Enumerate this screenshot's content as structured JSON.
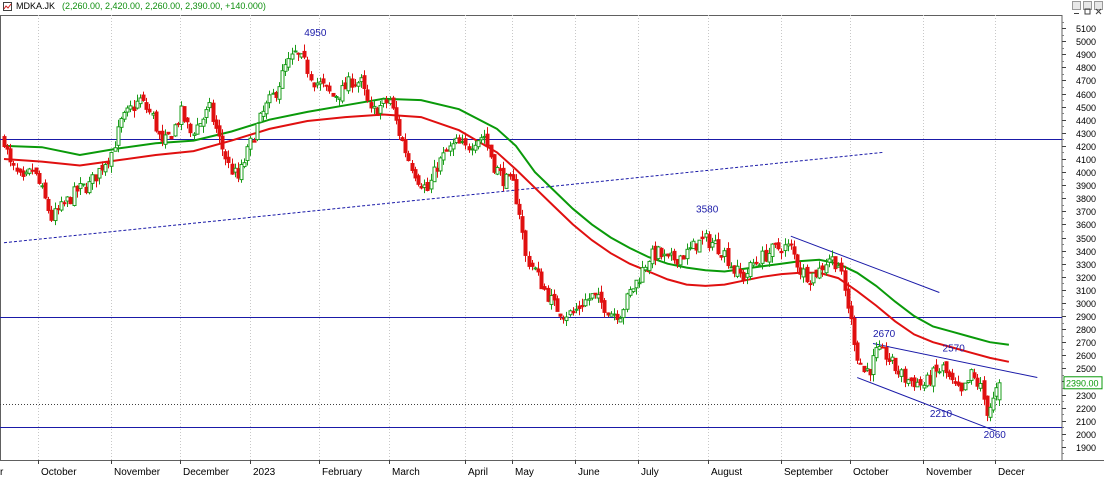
{
  "window": {
    "symbol": "MDKA.JK",
    "ohlc": "(2,260.00, 2,420.00, 2,260.00, 2,390.00, +140.000)"
  },
  "colors": {
    "up": "#1a9c1a",
    "down": "#e01010",
    "ma_green": "#0a9a0a",
    "ma_red": "#e01010",
    "lines": "#1a1aa8",
    "labels": "#1a1aa8",
    "price_tag": "#0a9a0a"
  },
  "chart_data": {
    "type": "candlestick",
    "ylim": [
      1800,
      5200
    ],
    "yticks": [
      1900,
      2000,
      2100,
      2200,
      2300,
      2400,
      2500,
      2600,
      2700,
      2800,
      2900,
      3000,
      3100,
      3200,
      3300,
      3400,
      3500,
      3600,
      3700,
      3800,
      3900,
      4000,
      4100,
      4200,
      4300,
      4400,
      4500,
      4600,
      4700,
      4800,
      4900,
      5000,
      5100
    ],
    "month_labels": [
      {
        "label": "r",
        "pos": 0.5
      },
      {
        "label": "October",
        "pos": 12
      },
      {
        "label": "November",
        "pos": 35
      },
      {
        "label": "December",
        "pos": 57
      },
      {
        "label": "2023",
        "pos": 79
      },
      {
        "label": "February",
        "pos": 101
      },
      {
        "label": "March",
        "pos": 123
      },
      {
        "label": "April",
        "pos": 147
      },
      {
        "label": "May",
        "pos": 162
      },
      {
        "label": "June",
        "pos": 182
      },
      {
        "label": "July",
        "pos": 202
      },
      {
        "label": "August",
        "pos": 224
      },
      {
        "label": "September",
        "pos": 247
      },
      {
        "label": "October",
        "pos": 269
      },
      {
        "label": "November",
        "pos": 292
      },
      {
        "label": "Decer",
        "pos": 315
      }
    ],
    "last_price_label": "2390.00",
    "last_price": 2390,
    "horizontal_lines": [
      {
        "value": 4250,
        "style": "solid"
      },
      {
        "value": 2890,
        "style": "solid"
      },
      {
        "value": 2230,
        "style": "dotted"
      },
      {
        "value": 2050,
        "style": "solid"
      }
    ],
    "trend_lines": [
      {
        "from": [
          0,
          3460
        ],
        "to": [
          278,
          4150
        ],
        "style": "dashed"
      },
      {
        "from": [
          249,
          3510
        ],
        "to": [
          296,
          3080
        ],
        "style": "solid"
      },
      {
        "from": [
          275,
          2690
        ],
        "to": [
          327,
          2430
        ],
        "style": "solid"
      },
      {
        "from": [
          270,
          2430
        ],
        "to": [
          314,
          2020
        ],
        "style": "solid"
      }
    ],
    "annotations": [
      {
        "text": "4950",
        "x": 95,
        "y": 5040
      },
      {
        "text": "3580",
        "x": 219,
        "y": 3690
      },
      {
        "text": "2670",
        "x": 275,
        "y": 2740
      },
      {
        "text": "2570",
        "x": 297,
        "y": 2630
      },
      {
        "text": "2210",
        "x": 293,
        "y": 2130
      },
      {
        "text": "2060",
        "x": 310,
        "y": 1970
      }
    ],
    "price_anchors": [
      [
        0,
        4250
      ],
      [
        2,
        4050
      ],
      [
        6,
        3920
      ],
      [
        9,
        4020
      ],
      [
        12,
        3850
      ],
      [
        15,
        3650
      ],
      [
        19,
        3750
      ],
      [
        23,
        3860
      ],
      [
        27,
        3900
      ],
      [
        31,
        4050
      ],
      [
        34,
        4150
      ],
      [
        37,
        4380
      ],
      [
        40,
        4480
      ],
      [
        43,
        4550
      ],
      [
        47,
        4420
      ],
      [
        50,
        4200
      ],
      [
        53,
        4300
      ],
      [
        56,
        4450
      ],
      [
        59,
        4300
      ],
      [
        62,
        4380
      ],
      [
        65,
        4480
      ],
      [
        68,
        4250
      ],
      [
        71,
        4050
      ],
      [
        74,
        3950
      ],
      [
        77,
        4150
      ],
      [
        80,
        4350
      ],
      [
        83,
        4500
      ],
      [
        86,
        4620
      ],
      [
        89,
        4800
      ],
      [
        92,
        4900
      ],
      [
        95,
        4830
      ],
      [
        98,
        4700
      ],
      [
        101,
        4650
      ],
      [
        104,
        4580
      ],
      [
        107,
        4620
      ],
      [
        110,
        4700
      ],
      [
        113,
        4680
      ],
      [
        116,
        4450
      ],
      [
        119,
        4500
      ],
      [
        122,
        4550
      ],
      [
        125,
        4300
      ],
      [
        128,
        4100
      ],
      [
        131,
        3950
      ],
      [
        134,
        3860
      ],
      [
        137,
        4050
      ],
      [
        140,
        4150
      ],
      [
        143,
        4220
      ],
      [
        146,
        4180
      ],
      [
        149,
        4250
      ],
      [
        152,
        4280
      ],
      [
        155,
        4050
      ],
      [
        158,
        3950
      ],
      [
        161,
        3900
      ],
      [
        163,
        3700
      ],
      [
        165,
        3350
      ],
      [
        168,
        3250
      ],
      [
        171,
        3100
      ],
      [
        174,
        2980
      ],
      [
        177,
        2920
      ],
      [
        180,
        2920
      ],
      [
        183,
        3000
      ],
      [
        186,
        3050
      ],
      [
        189,
        3000
      ],
      [
        192,
        2930
      ],
      [
        195,
        2920
      ],
      [
        198,
        3080
      ],
      [
        201,
        3200
      ],
      [
        204,
        3350
      ],
      [
        207,
        3380
      ],
      [
        210,
        3320
      ],
      [
        213,
        3350
      ],
      [
        216,
        3380
      ],
      [
        219,
        3450
      ],
      [
        222,
        3480
      ],
      [
        225,
        3450
      ],
      [
        228,
        3380
      ],
      [
        231,
        3250
      ],
      [
        234,
        3200
      ],
      [
        237,
        3300
      ],
      [
        240,
        3350
      ],
      [
        243,
        3400
      ],
      [
        246,
        3430
      ],
      [
        249,
        3420
      ],
      [
        252,
        3250
      ],
      [
        255,
        3200
      ],
      [
        258,
        3250
      ],
      [
        261,
        3350
      ],
      [
        264,
        3300
      ],
      [
        267,
        2980
      ],
      [
        270,
        2600
      ],
      [
        272,
        2480
      ],
      [
        274,
        2500
      ],
      [
        276,
        2620
      ],
      [
        279,
        2600
      ],
      [
        282,
        2500
      ],
      [
        285,
        2420
      ],
      [
        288,
        2400
      ],
      [
        291,
        2370
      ],
      [
        294,
        2450
      ],
      [
        297,
        2500
      ],
      [
        300,
        2380
      ],
      [
        303,
        2300
      ],
      [
        306,
        2450
      ],
      [
        309,
        2350
      ],
      [
        311,
        2180
      ],
      [
        313,
        2250
      ],
      [
        315,
        2390
      ]
    ],
    "ma_green": [
      [
        0,
        4200
      ],
      [
        12,
        4190
      ],
      [
        24,
        4130
      ],
      [
        36,
        4180
      ],
      [
        48,
        4220
      ],
      [
        60,
        4240
      ],
      [
        72,
        4310
      ],
      [
        84,
        4400
      ],
      [
        96,
        4460
      ],
      [
        108,
        4510
      ],
      [
        120,
        4560
      ],
      [
        132,
        4550
      ],
      [
        144,
        4480
      ],
      [
        156,
        4330
      ],
      [
        162,
        4200
      ],
      [
        168,
        4000
      ],
      [
        174,
        3860
      ],
      [
        180,
        3720
      ],
      [
        186,
        3600
      ],
      [
        192,
        3500
      ],
      [
        198,
        3420
      ],
      [
        204,
        3350
      ],
      [
        210,
        3300
      ],
      [
        216,
        3270
      ],
      [
        222,
        3250
      ],
      [
        228,
        3240
      ],
      [
        234,
        3260
      ],
      [
        240,
        3280
      ],
      [
        246,
        3300
      ],
      [
        252,
        3320
      ],
      [
        258,
        3330
      ],
      [
        264,
        3300
      ],
      [
        270,
        3230
      ],
      [
        276,
        3130
      ],
      [
        282,
        3010
      ],
      [
        288,
        2900
      ],
      [
        294,
        2820
      ],
      [
        300,
        2780
      ],
      [
        306,
        2740
      ],
      [
        312,
        2700
      ],
      [
        318,
        2680
      ]
    ],
    "ma_red": [
      [
        0,
        4100
      ],
      [
        12,
        4080
      ],
      [
        24,
        4050
      ],
      [
        36,
        4090
      ],
      [
        48,
        4130
      ],
      [
        60,
        4160
      ],
      [
        72,
        4240
      ],
      [
        84,
        4330
      ],
      [
        96,
        4390
      ],
      [
        108,
        4420
      ],
      [
        120,
        4440
      ],
      [
        132,
        4420
      ],
      [
        144,
        4320
      ],
      [
        156,
        4150
      ],
      [
        162,
        4020
      ],
      [
        168,
        3880
      ],
      [
        174,
        3740
      ],
      [
        180,
        3600
      ],
      [
        186,
        3480
      ],
      [
        192,
        3380
      ],
      [
        198,
        3300
      ],
      [
        204,
        3240
      ],
      [
        210,
        3180
      ],
      [
        216,
        3140
      ],
      [
        222,
        3130
      ],
      [
        228,
        3140
      ],
      [
        234,
        3170
      ],
      [
        240,
        3200
      ],
      [
        246,
        3220
      ],
      [
        252,
        3230
      ],
      [
        258,
        3230
      ],
      [
        264,
        3190
      ],
      [
        270,
        3090
      ],
      [
        276,
        2980
      ],
      [
        282,
        2860
      ],
      [
        288,
        2760
      ],
      [
        294,
        2700
      ],
      [
        300,
        2660
      ],
      [
        306,
        2620
      ],
      [
        312,
        2580
      ],
      [
        318,
        2550
      ]
    ]
  }
}
